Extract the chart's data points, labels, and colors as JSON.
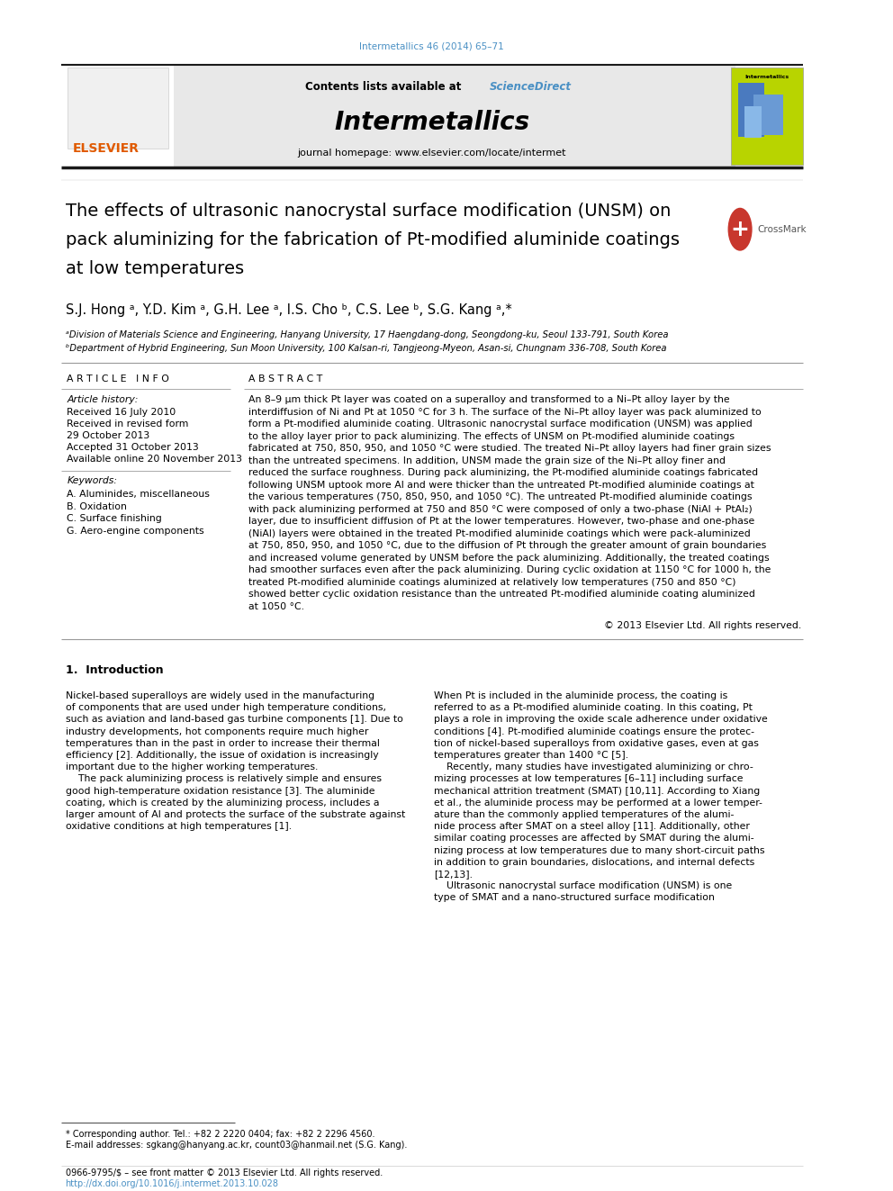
{
  "page_width": 9.92,
  "page_height": 13.23,
  "bg_color": "#ffffff",
  "top_citation": "Intermetallics 46 (2014) 65–71",
  "top_citation_color": "#4a90c4",
  "journal_title": "Intermetallics",
  "contents_text": "Contents lists available at ",
  "sciencedirect_text": "ScienceDirect",
  "sciencedirect_color": "#4a90c4",
  "homepage_text": "journal homepage: www.elsevier.com/locate/intermet",
  "header_bg": "#e8e8e8",
  "thick_line_color": "#1a1a1a",
  "article_title_line1": "The effects of ultrasonic nanocrystal surface modification (UNSM) on",
  "article_title_line2": "pack aluminizing for the fabrication of Pt-modified aluminide coatings",
  "article_title_line3": "at low temperatures",
  "authors_line": "S.J. Hong ᵃ, Y.D. Kim ᵃ, G.H. Lee ᵃ, I.S. Cho ᵇ, C.S. Lee ᵇ, S.G. Kang ᵃ,*",
  "affil_a": "ᵃDivision of Materials Science and Engineering, Hanyang University, 17 Haengdang-dong, Seongdong-ku, Seoul 133-791, South Korea",
  "affil_b": "ᵇDepartment of Hybrid Engineering, Sun Moon University, 100 Kalsan-ri, Tangjeong-Myeon, Asan-si, Chungnam 336-708, South Korea",
  "article_info_header": "A R T I C L E   I N F O",
  "abstract_header": "A B S T R A C T",
  "article_history_label": "Article history:",
  "received": "Received 16 July 2010",
  "received_revised": "Received in revised form",
  "revised_date": "29 October 2013",
  "accepted": "Accepted 31 October 2013",
  "available": "Available online 20 November 2013",
  "keywords_label": "Keywords:",
  "keywords": [
    "A. Aluminides, miscellaneous",
    "B. Oxidation",
    "C. Surface finishing",
    "G. Aero-engine components"
  ],
  "abstract_text": "An 8–9 μm thick Pt layer was coated on a superalloy and transformed to a Ni–Pt alloy layer by the\ninterdiffusion of Ni and Pt at 1050 °C for 3 h. The surface of the Ni–Pt alloy layer was pack aluminized to\nform a Pt-modified aluminide coating. Ultrasonic nanocrystal surface modification (UNSM) was applied\nto the alloy layer prior to pack aluminizing. The effects of UNSM on Pt-modified aluminide coatings\nfabricated at 750, 850, 950, and 1050 °C were studied. The treated Ni–Pt alloy layers had finer grain sizes\nthan the untreated specimens. In addition, UNSM made the grain size of the Ni–Pt alloy finer and\nreduced the surface roughness. During pack aluminizing, the Pt-modified aluminide coatings fabricated\nfollowing UNSM uptook more Al and were thicker than the untreated Pt-modified aluminide coatings at\nthe various temperatures (750, 850, 950, and 1050 °C). The untreated Pt-modified aluminide coatings\nwith pack aluminizing performed at 750 and 850 °C were composed of only a two-phase (NiAl + PtAl₂)\nlayer, due to insufficient diffusion of Pt at the lower temperatures. However, two-phase and one-phase\n(NiAl) layers were obtained in the treated Pt-modified aluminide coatings which were pack-aluminized\nat 750, 850, 950, and 1050 °C, due to the diffusion of Pt through the greater amount of grain boundaries\nand increased volume generated by UNSM before the pack aluminizing. Additionally, the treated coatings\nhad smoother surfaces even after the pack aluminizing. During cyclic oxidation at 1150 °C for 1000 h, the\ntreated Pt-modified aluminide coatings aluminized at relatively low temperatures (750 and 850 °C)\nshowed better cyclic oxidation resistance than the untreated Pt-modified aluminide coating aluminized\nat 1050 °C.",
  "copyright": "© 2013 Elsevier Ltd. All rights reserved.",
  "section1_title": "1.  Introduction",
  "intro_col1_lines": [
    "Nickel-based superalloys are widely used in the manufacturing",
    "of components that are used under high temperature conditions,",
    "such as aviation and land-based gas turbine components [1]. Due to",
    "industry developments, hot components require much higher",
    "temperatures than in the past in order to increase their thermal",
    "efficiency [2]. Additionally, the issue of oxidation is increasingly",
    "important due to the higher working temperatures.",
    "    The pack aluminizing process is relatively simple and ensures",
    "good high-temperature oxidation resistance [3]. The aluminide",
    "coating, which is created by the aluminizing process, includes a",
    "larger amount of Al and protects the surface of the substrate against",
    "oxidative conditions at high temperatures [1]."
  ],
  "intro_col2_lines": [
    "When Pt is included in the aluminide process, the coating is",
    "referred to as a Pt-modified aluminide coating. In this coating, Pt",
    "plays a role in improving the oxide scale adherence under oxidative",
    "conditions [4]. Pt-modified aluminide coatings ensure the protec-",
    "tion of nickel-based superalloys from oxidative gases, even at gas",
    "temperatures greater than 1400 °C [5].",
    "    Recently, many studies have investigated aluminizing or chro-",
    "mizing processes at low temperatures [6–11] including surface",
    "mechanical attrition treatment (SMAT) [10,11]. According to Xiang",
    "et al., the aluminide process may be performed at a lower temper-",
    "ature than the commonly applied temperatures of the alumi-",
    "nide process after SMAT on a steel alloy [11]. Additionally, other",
    "similar coating processes are affected by SMAT during the alumi-",
    "nizing process at low temperatures due to many short-circuit paths",
    "in addition to grain boundaries, dislocations, and internal defects",
    "[12,13].",
    "    Ultrasonic nanocrystal surface modification (UNSM) is one",
    "type of SMAT and a nano-structured surface modification"
  ],
  "footnote_star": "* Corresponding author. Tel.: +82 2 2220 0404; fax: +82 2 2296 4560.",
  "footnote_email": "E-mail addresses: sgkang@hanyang.ac.kr, count03@hanmail.net (S.G. Kang).",
  "footer_left": "0966-9795/$ – see front matter © 2013 Elsevier Ltd. All rights reserved.",
  "footer_doi": "http://dx.doi.org/10.1016/j.intermet.2013.10.028",
  "footer_doi_color": "#4a90c4",
  "elsevier_color": "#e05a00",
  "crossmark_red": "#c8372d",
  "crossmark_blue": "#2060a0"
}
